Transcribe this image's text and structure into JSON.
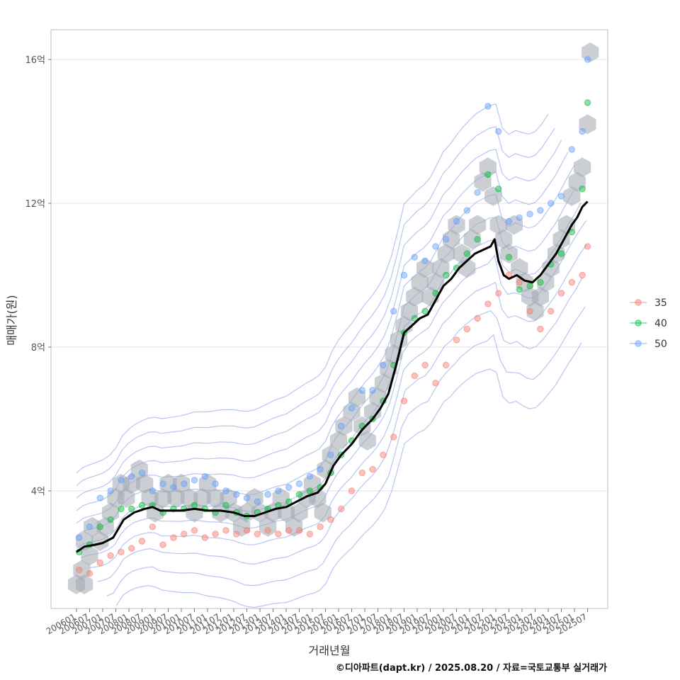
{
  "chart_data": {
    "type": "scatter",
    "xlabel": "거래년월",
    "ylabel": "매매가(원)",
    "caption": "©디아파트(dapt.kr) / 2025.08.20 / 자료=국토교통부 실거래가",
    "x_ticks": [
      "200601",
      "200607",
      "200701",
      "200707",
      "200801",
      "200807",
      "200901",
      "200907",
      "201001",
      "201007",
      "201101",
      "201107",
      "201201",
      "201207",
      "201301",
      "201307",
      "201401",
      "201407",
      "201501",
      "201507",
      "201601",
      "201607",
      "201701",
      "201707",
      "201801",
      "201807",
      "201901",
      "201907",
      "202001",
      "202007",
      "202101",
      "202107",
      "202201",
      "202207",
      "202301",
      "202307",
      "202401",
      "202407",
      "202501",
      "202507"
    ],
    "y_ticks": [
      {
        "value": 4,
        "label": "4억"
      },
      {
        "value": 8,
        "label": "8억"
      },
      {
        "value": 12,
        "label": "12억"
      },
      {
        "value": 16,
        "label": "16억"
      }
    ],
    "ylim": [
      1.0,
      16.8
    ],
    "grid": "horizontal",
    "legend_position": "right",
    "series": [
      {
        "name": "35",
        "color": "#F8766D",
        "points": [
          [
            2006.1,
            1.8
          ],
          [
            2006.5,
            1.7
          ],
          [
            2006.9,
            2.0
          ],
          [
            2007.3,
            2.2
          ],
          [
            2007.7,
            2.3
          ],
          [
            2008.1,
            2.4
          ],
          [
            2008.5,
            2.6
          ],
          [
            2008.9,
            3.0
          ],
          [
            2009.3,
            2.5
          ],
          [
            2009.7,
            2.7
          ],
          [
            2010.1,
            2.8
          ],
          [
            2010.5,
            2.9
          ],
          [
            2010.9,
            2.7
          ],
          [
            2011.3,
            2.8
          ],
          [
            2011.7,
            2.9
          ],
          [
            2012.1,
            2.8
          ],
          [
            2012.5,
            2.9
          ],
          [
            2012.9,
            2.8
          ],
          [
            2013.3,
            2.9
          ],
          [
            2013.7,
            2.8
          ],
          [
            2014.1,
            2.9
          ],
          [
            2014.5,
            2.9
          ],
          [
            2014.9,
            2.8
          ],
          [
            2015.3,
            3.0
          ],
          [
            2015.7,
            3.2
          ],
          [
            2016.1,
            3.5
          ],
          [
            2016.5,
            4.0
          ],
          [
            2016.9,
            4.5
          ],
          [
            2017.3,
            4.6
          ],
          [
            2017.7,
            5.0
          ],
          [
            2018.1,
            5.5
          ],
          [
            2018.5,
            6.5
          ],
          [
            2018.9,
            7.2
          ],
          [
            2019.3,
            7.5
          ],
          [
            2019.7,
            7.0
          ],
          [
            2020.1,
            7.5
          ],
          [
            2020.5,
            8.2
          ],
          [
            2020.9,
            8.5
          ],
          [
            2021.3,
            8.8
          ],
          [
            2021.7,
            9.2
          ],
          [
            2022.1,
            9.5
          ],
          [
            2022.5,
            10.0
          ],
          [
            2022.9,
            9.8
          ],
          [
            2023.3,
            9.0
          ],
          [
            2023.7,
            8.5
          ],
          [
            2024.1,
            9.0
          ],
          [
            2024.5,
            9.5
          ],
          [
            2024.9,
            9.8
          ],
          [
            2025.3,
            10.0
          ],
          [
            2025.5,
            10.8
          ]
        ]
      },
      {
        "name": "40",
        "color": "#00BA38",
        "points": [
          [
            2006.1,
            2.3
          ],
          [
            2006.5,
            2.5
          ],
          [
            2006.9,
            3.0
          ],
          [
            2007.3,
            3.2
          ],
          [
            2007.7,
            3.5
          ],
          [
            2008.1,
            3.5
          ],
          [
            2008.5,
            3.6
          ],
          [
            2008.9,
            3.6
          ],
          [
            2009.3,
            3.4
          ],
          [
            2009.7,
            3.5
          ],
          [
            2010.1,
            3.5
          ],
          [
            2010.5,
            3.6
          ],
          [
            2010.9,
            3.5
          ],
          [
            2011.3,
            3.4
          ],
          [
            2011.7,
            3.6
          ],
          [
            2012.1,
            3.4
          ],
          [
            2012.5,
            3.3
          ],
          [
            2012.9,
            3.4
          ],
          [
            2013.3,
            3.5
          ],
          [
            2013.7,
            3.6
          ],
          [
            2014.1,
            3.7
          ],
          [
            2014.5,
            3.9
          ],
          [
            2014.9,
            4.0
          ],
          [
            2015.3,
            4.1
          ],
          [
            2015.7,
            4.5
          ],
          [
            2016.1,
            5.0
          ],
          [
            2016.5,
            5.4
          ],
          [
            2016.9,
            5.8
          ],
          [
            2017.3,
            6.0
          ],
          [
            2017.7,
            6.5
          ],
          [
            2018.1,
            7.5
          ],
          [
            2018.5,
            8.4
          ],
          [
            2018.9,
            8.8
          ],
          [
            2019.3,
            9.0
          ],
          [
            2019.7,
            9.5
          ],
          [
            2020.1,
            10.0
          ],
          [
            2020.5,
            10.2
          ],
          [
            2020.9,
            10.6
          ],
          [
            2021.3,
            11.0
          ],
          [
            2021.7,
            12.8
          ],
          [
            2022.1,
            12.4
          ],
          [
            2022.5,
            10.5
          ],
          [
            2022.9,
            9.6
          ],
          [
            2023.3,
            9.7
          ],
          [
            2023.7,
            9.8
          ],
          [
            2024.1,
            10.3
          ],
          [
            2024.5,
            10.6
          ],
          [
            2024.9,
            11.2
          ],
          [
            2025.3,
            12.4
          ],
          [
            2025.5,
            14.8
          ]
        ]
      },
      {
        "name": "50",
        "color": "#619CFF",
        "points": [
          [
            2006.1,
            2.7
          ],
          [
            2006.5,
            3.0
          ],
          [
            2006.9,
            3.8
          ],
          [
            2007.3,
            4.0
          ],
          [
            2007.7,
            4.3
          ],
          [
            2008.1,
            4.4
          ],
          [
            2008.5,
            4.5
          ],
          [
            2008.9,
            4.0
          ],
          [
            2009.3,
            4.2
          ],
          [
            2009.7,
            4.1
          ],
          [
            2010.1,
            4.2
          ],
          [
            2010.5,
            4.3
          ],
          [
            2010.9,
            4.4
          ],
          [
            2011.3,
            4.2
          ],
          [
            2011.7,
            4.0
          ],
          [
            2012.1,
            3.9
          ],
          [
            2012.5,
            3.8
          ],
          [
            2012.9,
            3.7
          ],
          [
            2013.3,
            3.9
          ],
          [
            2013.7,
            4.0
          ],
          [
            2014.1,
            4.1
          ],
          [
            2014.5,
            4.2
          ],
          [
            2014.9,
            4.4
          ],
          [
            2015.3,
            4.6
          ],
          [
            2015.7,
            5.0
          ],
          [
            2016.1,
            5.8
          ],
          [
            2016.5,
            6.3
          ],
          [
            2016.9,
            6.8
          ],
          [
            2017.3,
            6.8
          ],
          [
            2017.7,
            7.5
          ],
          [
            2018.1,
            9.0
          ],
          [
            2018.5,
            10.0
          ],
          [
            2018.9,
            10.5
          ],
          [
            2019.3,
            10.4
          ],
          [
            2019.7,
            10.8
          ],
          [
            2020.1,
            11.0
          ],
          [
            2020.5,
            11.5
          ],
          [
            2020.9,
            11.8
          ],
          [
            2021.3,
            12.3
          ],
          [
            2021.7,
            14.7
          ],
          [
            2022.1,
            14.0
          ],
          [
            2022.5,
            11.5
          ],
          [
            2022.9,
            11.6
          ],
          [
            2023.3,
            11.7
          ],
          [
            2023.7,
            11.8
          ],
          [
            2024.1,
            12.0
          ],
          [
            2024.5,
            12.2
          ],
          [
            2024.9,
            13.5
          ],
          [
            2025.3,
            14.0
          ],
          [
            2025.5,
            16.0
          ]
        ]
      }
    ],
    "trend_line": {
      "color": "#000000",
      "points": [
        [
          2006.0,
          2.3
        ],
        [
          2006.3,
          2.45
        ],
        [
          2006.7,
          2.5
        ],
        [
          2007.0,
          2.55
        ],
        [
          2007.4,
          2.7
        ],
        [
          2007.8,
          3.2
        ],
        [
          2008.2,
          3.4
        ],
        [
          2008.6,
          3.5
        ],
        [
          2008.9,
          3.55
        ],
        [
          2009.2,
          3.45
        ],
        [
          2009.6,
          3.45
        ],
        [
          2010.0,
          3.45
        ],
        [
          2010.5,
          3.5
        ],
        [
          2011.0,
          3.45
        ],
        [
          2011.5,
          3.45
        ],
        [
          2012.0,
          3.4
        ],
        [
          2012.4,
          3.3
        ],
        [
          2012.8,
          3.3
        ],
        [
          2013.2,
          3.4
        ],
        [
          2013.6,
          3.5
        ],
        [
          2014.0,
          3.55
        ],
        [
          2014.4,
          3.7
        ],
        [
          2014.8,
          3.85
        ],
        [
          2015.2,
          3.95
        ],
        [
          2015.5,
          4.2
        ],
        [
          2015.8,
          4.7
        ],
        [
          2016.1,
          5.0
        ],
        [
          2016.5,
          5.3
        ],
        [
          2016.9,
          5.7
        ],
        [
          2017.3,
          6.0
        ],
        [
          2017.6,
          6.3
        ],
        [
          2017.9,
          6.7
        ],
        [
          2018.2,
          7.5
        ],
        [
          2018.5,
          8.4
        ],
        [
          2018.8,
          8.6
        ],
        [
          2019.1,
          8.8
        ],
        [
          2019.4,
          8.9
        ],
        [
          2019.7,
          9.3
        ],
        [
          2020.0,
          9.7
        ],
        [
          2020.3,
          9.9
        ],
        [
          2020.6,
          10.2
        ],
        [
          2020.9,
          10.4
        ],
        [
          2021.2,
          10.6
        ],
        [
          2021.5,
          10.7
        ],
        [
          2021.8,
          10.8
        ],
        [
          2021.95,
          11.0
        ],
        [
          2022.1,
          10.4
        ],
        [
          2022.3,
          10.0
        ],
        [
          2022.5,
          9.9
        ],
        [
          2022.8,
          10.0
        ],
        [
          2023.1,
          9.85
        ],
        [
          2023.4,
          9.8
        ],
        [
          2023.7,
          10.0
        ],
        [
          2024.0,
          10.3
        ],
        [
          2024.3,
          10.6
        ],
        [
          2024.6,
          11.0
        ],
        [
          2024.9,
          11.4
        ],
        [
          2025.1,
          11.6
        ],
        [
          2025.3,
          11.9
        ],
        [
          2025.5,
          12.05
        ]
      ]
    },
    "density_contours": {
      "color": "#7B96E8",
      "offsets": [
        -1.9,
        -1.45,
        -1.0,
        -0.6,
        -0.25,
        0.1,
        0.45,
        0.8,
        1.15,
        1.5,
        1.85,
        2.2
      ]
    },
    "hex_bins": {
      "color": "#A0A8B0",
      "cells": [
        [
          2006.0,
          1.4
        ],
        [
          2006.3,
          1.4
        ],
        [
          2006.2,
          1.8
        ],
        [
          2006.5,
          2.2
        ],
        [
          2006.3,
          2.6
        ],
        [
          2006.6,
          3.0
        ],
        [
          2006.9,
          2.6
        ],
        [
          2007.1,
          3.0
        ],
        [
          2007.3,
          3.4
        ],
        [
          2007.5,
          3.8
        ],
        [
          2007.7,
          4.2
        ],
        [
          2007.9,
          3.8
        ],
        [
          2008.1,
          4.2
        ],
        [
          2008.4,
          4.6
        ],
        [
          2008.6,
          4.2
        ],
        [
          2008.8,
          3.8
        ],
        [
          2009.0,
          3.4
        ],
        [
          2009.3,
          3.8
        ],
        [
          2009.5,
          4.2
        ],
        [
          2009.8,
          3.8
        ],
        [
          2010.0,
          4.2
        ],
        [
          2010.3,
          3.8
        ],
        [
          2010.5,
          3.4
        ],
        [
          2010.8,
          3.8
        ],
        [
          2011.0,
          4.2
        ],
        [
          2011.3,
          3.8
        ],
        [
          2011.5,
          3.4
        ],
        [
          2011.8,
          3.8
        ],
        [
          2012.0,
          3.4
        ],
        [
          2012.3,
          3.0
        ],
        [
          2012.5,
          3.4
        ],
        [
          2012.8,
          3.8
        ],
        [
          2013.0,
          3.4
        ],
        [
          2013.3,
          3.0
        ],
        [
          2013.5,
          3.4
        ],
        [
          2013.8,
          3.8
        ],
        [
          2014.0,
          3.4
        ],
        [
          2014.3,
          3.0
        ],
        [
          2014.5,
          3.4
        ],
        [
          2014.8,
          3.8
        ],
        [
          2015.0,
          4.2
        ],
        [
          2015.2,
          3.8
        ],
        [
          2015.4,
          3.4
        ],
        [
          2015.5,
          4.6
        ],
        [
          2015.7,
          5.0
        ],
        [
          2016.0,
          5.4
        ],
        [
          2016.2,
          5.8
        ],
        [
          2016.5,
          6.2
        ],
        [
          2016.7,
          6.6
        ],
        [
          2016.9,
          5.8
        ],
        [
          2017.1,
          5.4
        ],
        [
          2017.3,
          6.2
        ],
        [
          2017.5,
          6.6
        ],
        [
          2017.7,
          7.0
        ],
        [
          2017.9,
          7.4
        ],
        [
          2018.1,
          7.8
        ],
        [
          2018.3,
          8.2
        ],
        [
          2018.5,
          8.6
        ],
        [
          2018.7,
          9.0
        ],
        [
          2018.9,
          9.4
        ],
        [
          2019.1,
          9.8
        ],
        [
          2019.3,
          10.2
        ],
        [
          2019.5,
          9.4
        ],
        [
          2019.7,
          9.8
        ],
        [
          2019.9,
          10.2
        ],
        [
          2020.1,
          10.6
        ],
        [
          2020.3,
          11.0
        ],
        [
          2020.5,
          11.4
        ],
        [
          2020.7,
          10.6
        ],
        [
          2020.9,
          10.2
        ],
        [
          2021.1,
          11.0
        ],
        [
          2021.3,
          11.4
        ],
        [
          2021.5,
          12.6
        ],
        [
          2021.7,
          13.0
        ],
        [
          2021.9,
          12.2
        ],
        [
          2022.1,
          11.4
        ],
        [
          2022.3,
          11.0
        ],
        [
          2022.5,
          10.6
        ],
        [
          2022.7,
          11.4
        ],
        [
          2022.9,
          10.2
        ],
        [
          2023.1,
          9.8
        ],
        [
          2023.3,
          9.4
        ],
        [
          2023.5,
          9.0
        ],
        [
          2023.7,
          9.4
        ],
        [
          2023.9,
          9.8
        ],
        [
          2024.1,
          10.2
        ],
        [
          2024.3,
          10.6
        ],
        [
          2024.5,
          11.0
        ],
        [
          2024.7,
          11.4
        ],
        [
          2024.9,
          12.2
        ],
        [
          2025.1,
          12.6
        ],
        [
          2025.3,
          13.0
        ],
        [
          2025.5,
          14.2
        ],
        [
          2025.6,
          16.2
        ]
      ]
    }
  }
}
